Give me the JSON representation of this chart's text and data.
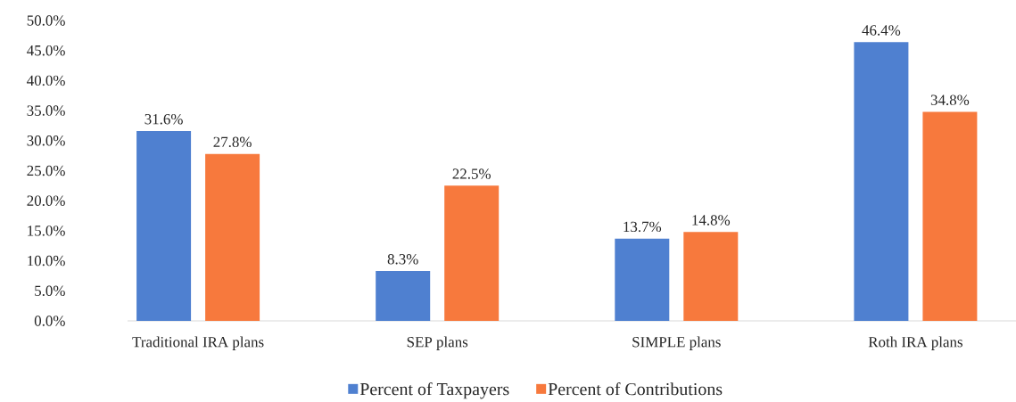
{
  "chart_data": {
    "type": "bar",
    "categories": [
      "Traditional IRA plans",
      "SEP plans",
      "SIMPLE plans",
      "Roth IRA plans"
    ],
    "series": [
      {
        "name": "Percent of Taxpayers",
        "color": "#4f80d0",
        "values": [
          31.6,
          8.3,
          13.7,
          46.4
        ],
        "value_labels": [
          "31.6%",
          "8.3%",
          "13.7%",
          "46.4%"
        ]
      },
      {
        "name": "Percent of Contributions",
        "color": "#f7793d",
        "values": [
          27.8,
          22.5,
          14.8,
          34.8
        ],
        "value_labels": [
          "27.8%",
          "22.5%",
          "14.8%",
          "34.8%"
        ]
      }
    ],
    "ylim": [
      0,
      50
    ],
    "yticks": [
      {
        "value": 0,
        "label": "0.0%"
      },
      {
        "value": 5,
        "label": "5.0%"
      },
      {
        "value": 10,
        "label": "10.0%"
      },
      {
        "value": 15,
        "label": "15.0%"
      },
      {
        "value": 20,
        "label": "20.0%"
      },
      {
        "value": 25,
        "label": "25.0%"
      },
      {
        "value": 30,
        "label": "30.0%"
      },
      {
        "value": 35,
        "label": "35.0%"
      },
      {
        "value": 40,
        "label": "40.0%"
      },
      {
        "value": 45,
        "label": "45.0%"
      },
      {
        "value": 50,
        "label": "50.0%"
      }
    ],
    "legend": "bottom"
  }
}
